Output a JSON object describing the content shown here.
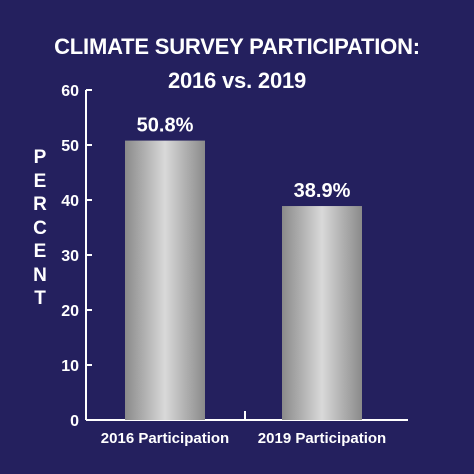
{
  "chart_data": {
    "type": "bar",
    "title_line1": "CLIMATE SURVEY PARTICIPATION:",
    "title_line2": "2016 vs. 2019",
    "ylabel": "PERCENT",
    "xlabel": "",
    "categories": [
      "2016 Participation",
      "2019 Participation"
    ],
    "values": [
      50.8,
      38.9
    ],
    "data_labels": [
      "50.8%",
      "38.9%"
    ],
    "ylim": [
      0,
      60
    ],
    "yticks": [
      0,
      10,
      20,
      30,
      40,
      50,
      60
    ],
    "grid": false,
    "legend": "none",
    "colors": {
      "background": "#24205e",
      "text": "#ffffff",
      "axis": "#ffffff",
      "bar_light": "#d9d9d9",
      "bar_dark": "#8a8a8a"
    }
  }
}
